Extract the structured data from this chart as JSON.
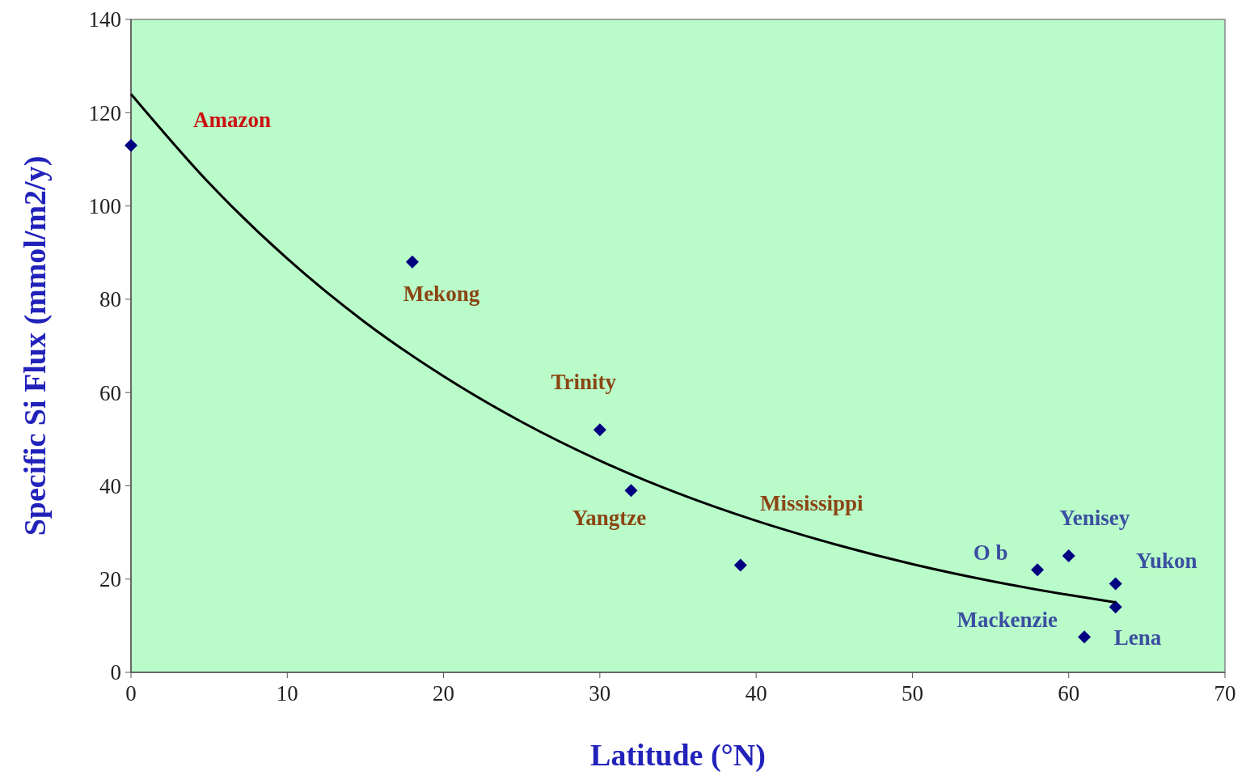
{
  "chart_data": {
    "type": "scatter",
    "xlabel": "Latitude (°N)",
    "ylabel": "Specific Si Flux (mmol/m2/y)",
    "xlim": [
      0,
      70
    ],
    "xticks": [
      0,
      10,
      20,
      30,
      40,
      50,
      60,
      70
    ],
    "ylim": [
      0,
      140
    ],
    "yticks": [
      0,
      20,
      40,
      60,
      80,
      100,
      120,
      140
    ],
    "grid": false,
    "marker": "diamond",
    "series": [
      {
        "color": "#000080",
        "x": [
          0,
          18,
          30,
          32,
          39,
          58,
          60,
          63,
          63,
          61
        ],
        "values": [
          113,
          88,
          52,
          39,
          23,
          22,
          25,
          19,
          14,
          7.6
        ]
      },
      {
        "type": "line",
        "color": "#000000",
        "marker": "none",
        "x": [
          0,
          5,
          10,
          15,
          20,
          25,
          30,
          35,
          40,
          45,
          50,
          55,
          60,
          63
        ],
        "values": [
          124,
          104.9,
          88.7,
          75,
          63.5,
          53.7,
          45.4,
          38.4,
          32.5,
          27.5,
          23.2,
          19.6,
          16.6,
          15
        ]
      }
    ],
    "annotations": [
      {
        "text": "Amazon",
        "x": 0,
        "y": 113
      },
      {
        "text": "Mekong",
        "x": 18,
        "y": 88
      },
      {
        "text": "Trinity",
        "x": 30,
        "y": 52
      },
      {
        "text": "Yangtze",
        "x": 32,
        "y": 39
      },
      {
        "text": "Mississippi",
        "x": 39,
        "y": 23
      },
      {
        "text": "O b",
        "x": 58,
        "y": 22
      },
      {
        "text": "Yenisey",
        "x": 60,
        "y": 25
      },
      {
        "text": "Yukon",
        "x": 63,
        "y": 19
      },
      {
        "text": "Mackenzie",
        "x": 63,
        "y": 14
      },
      {
        "text": "Lena",
        "x": 61,
        "y": 7.6
      }
    ]
  }
}
